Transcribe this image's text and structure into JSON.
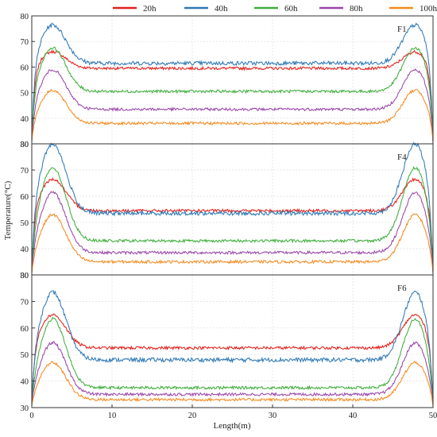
{
  "chart_data": {
    "type": "line",
    "xlabel": "Length(m)",
    "ylabel": "Temperature(°C)",
    "xlim": [
      0,
      50
    ],
    "x_ticks": [
      "0",
      "10",
      "20",
      "30",
      "40",
      "50"
    ],
    "grid": true,
    "legend": {
      "placement": "top",
      "entries": [
        {
          "name": "20h",
          "color": "#e3201b"
        },
        {
          "name": "40h",
          "color": "#2f79b7"
        },
        {
          "name": "60h",
          "color": "#3fae3b"
        },
        {
          "name": "80h",
          "color": "#9a45ab"
        },
        {
          "name": "100h",
          "color": "#f58a1f"
        }
      ]
    },
    "panels": [
      {
        "label": "F1",
        "ylim": [
          30,
          80
        ],
        "y_ticks": [
          "30",
          "40",
          "50",
          "60",
          "70",
          "80"
        ],
        "series": [
          {
            "name": "20h",
            "plateau": 59.5,
            "peak": 66
          },
          {
            "name": "40h",
            "plateau": 61.5,
            "peak": 76.5
          },
          {
            "name": "60h",
            "plateau": 50.5,
            "peak": 67.5
          },
          {
            "name": "80h",
            "plateau": 43.5,
            "peak": 59
          },
          {
            "name": "100h",
            "plateau": 38,
            "peak": 51
          }
        ]
      },
      {
        "label": "F4",
        "ylim": [
          30,
          80
        ],
        "y_ticks": [
          "30",
          "40",
          "50",
          "60",
          "70",
          "80"
        ],
        "series": [
          {
            "name": "20h",
            "plateau": 54.5,
            "peak": 66.5
          },
          {
            "name": "40h",
            "plateau": 53.5,
            "peak": 80
          },
          {
            "name": "60h",
            "plateau": 43,
            "peak": 71
          },
          {
            "name": "80h",
            "plateau": 38.5,
            "peak": 61.5
          },
          {
            "name": "100h",
            "plateau": 35,
            "peak": 53
          }
        ]
      },
      {
        "label": "F6",
        "ylim": [
          30,
          80
        ],
        "y_ticks": [
          "30",
          "40",
          "50",
          "60",
          "70",
          "80"
        ],
        "series": [
          {
            "name": "20h",
            "plateau": 52.5,
            "peak": 65
          },
          {
            "name": "40h",
            "plateau": 48,
            "peak": 73.5
          },
          {
            "name": "60h",
            "plateau": 37.5,
            "peak": 63.5
          },
          {
            "name": "80h",
            "plateau": 35,
            "peak": 54.5
          },
          {
            "name": "100h",
            "plateau": 33,
            "peak": 47
          }
        ]
      }
    ]
  }
}
